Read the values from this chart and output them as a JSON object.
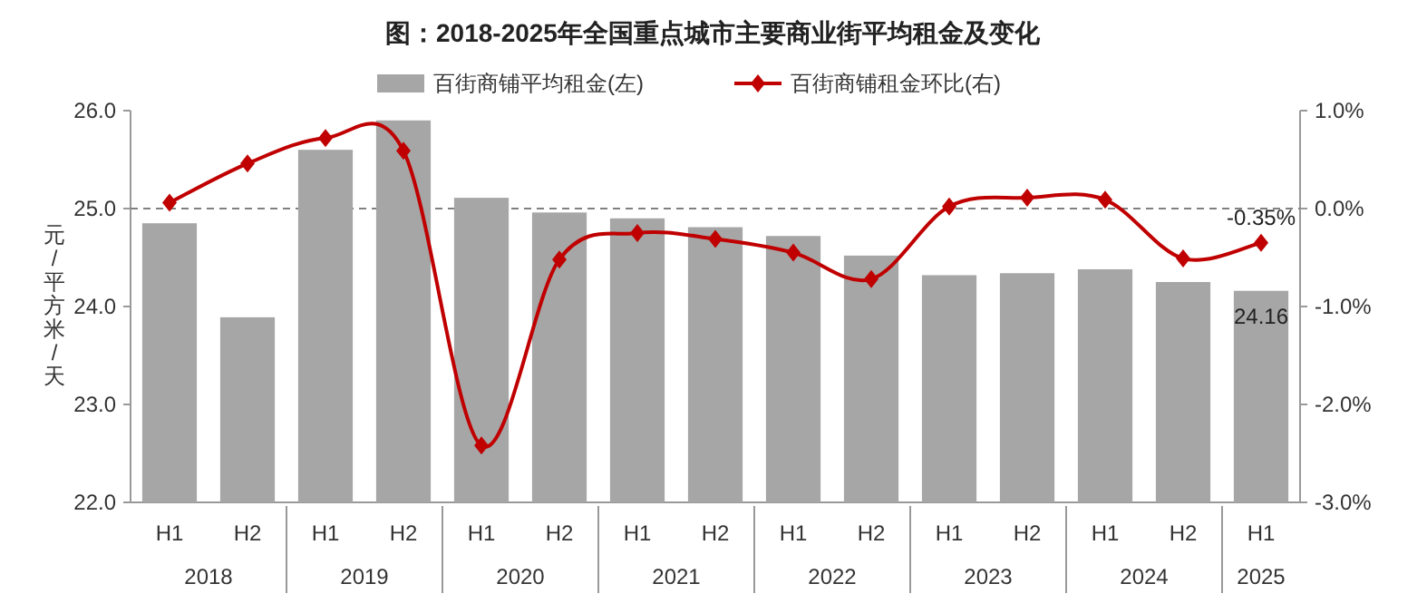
{
  "chart_data": {
    "type": "bar",
    "title": "图：2018-2025年全国重点城市主要商业街平均租金及变化",
    "categories": [
      "H1",
      "H2",
      "H1",
      "H2",
      "H1",
      "H2",
      "H1",
      "H2",
      "H1",
      "H2",
      "H1",
      "H2",
      "H1",
      "H2",
      "H1"
    ],
    "series": [
      {
        "type": "bar",
        "name": "百街商铺平均租金(左)",
        "color": "#a6a6a6",
        "values": [
          24.85,
          23.89,
          25.6,
          25.9,
          25.11,
          24.96,
          24.9,
          24.81,
          24.72,
          24.52,
          24.32,
          24.34,
          24.38,
          24.25,
          24.16
        ],
        "value_labels": [
          null,
          null,
          null,
          null,
          null,
          null,
          null,
          null,
          null,
          null,
          null,
          null,
          null,
          null,
          "24.16"
        ]
      },
      {
        "type": "line",
        "name": "百街商铺租金环比(右)",
        "color": "#c00000",
        "axis": "y2",
        "marker": "diamond",
        "values": [
          0.06,
          0.46,
          0.72,
          0.59,
          -2.42,
          -0.52,
          -0.25,
          -0.31,
          -0.45,
          -0.72,
          0.02,
          0.11,
          0.09,
          -0.51,
          -0.35
        ],
        "value_labels": [
          null,
          null,
          null,
          null,
          null,
          null,
          null,
          null,
          null,
          null,
          null,
          null,
          null,
          null,
          "-0.35%"
        ]
      }
    ],
    "ylabel": "元/平方米/天",
    "ylim": [
      22,
      26
    ],
    "yticks": [
      {
        "value": 22,
        "label": "22.0"
      },
      {
        "value": 23,
        "label": "23.0"
      },
      {
        "value": 24,
        "label": "24.0"
      },
      {
        "value": 25,
        "label": "25.0"
      },
      {
        "value": 26,
        "label": "26.0"
      }
    ],
    "y2lim": [
      -3,
      1
    ],
    "y2ticks": [
      {
        "value": -3,
        "label": "-3.0%"
      },
      {
        "value": -2,
        "label": "-2.0%"
      },
      {
        "value": -1,
        "label": "-1.0%"
      },
      {
        "value": 0,
        "label": "0.0%"
      },
      {
        "value": 1,
        "label": "1.0%"
      }
    ],
    "ref_lines": [
      {
        "axis": "y2",
        "value": 0,
        "color": "#808080",
        "line_style": "dashed"
      }
    ],
    "legend": "top",
    "annotations": [
      "2018",
      "2019",
      "2020",
      "2021",
      "2022",
      "2023",
      "2024",
      "2025"
    ]
  }
}
